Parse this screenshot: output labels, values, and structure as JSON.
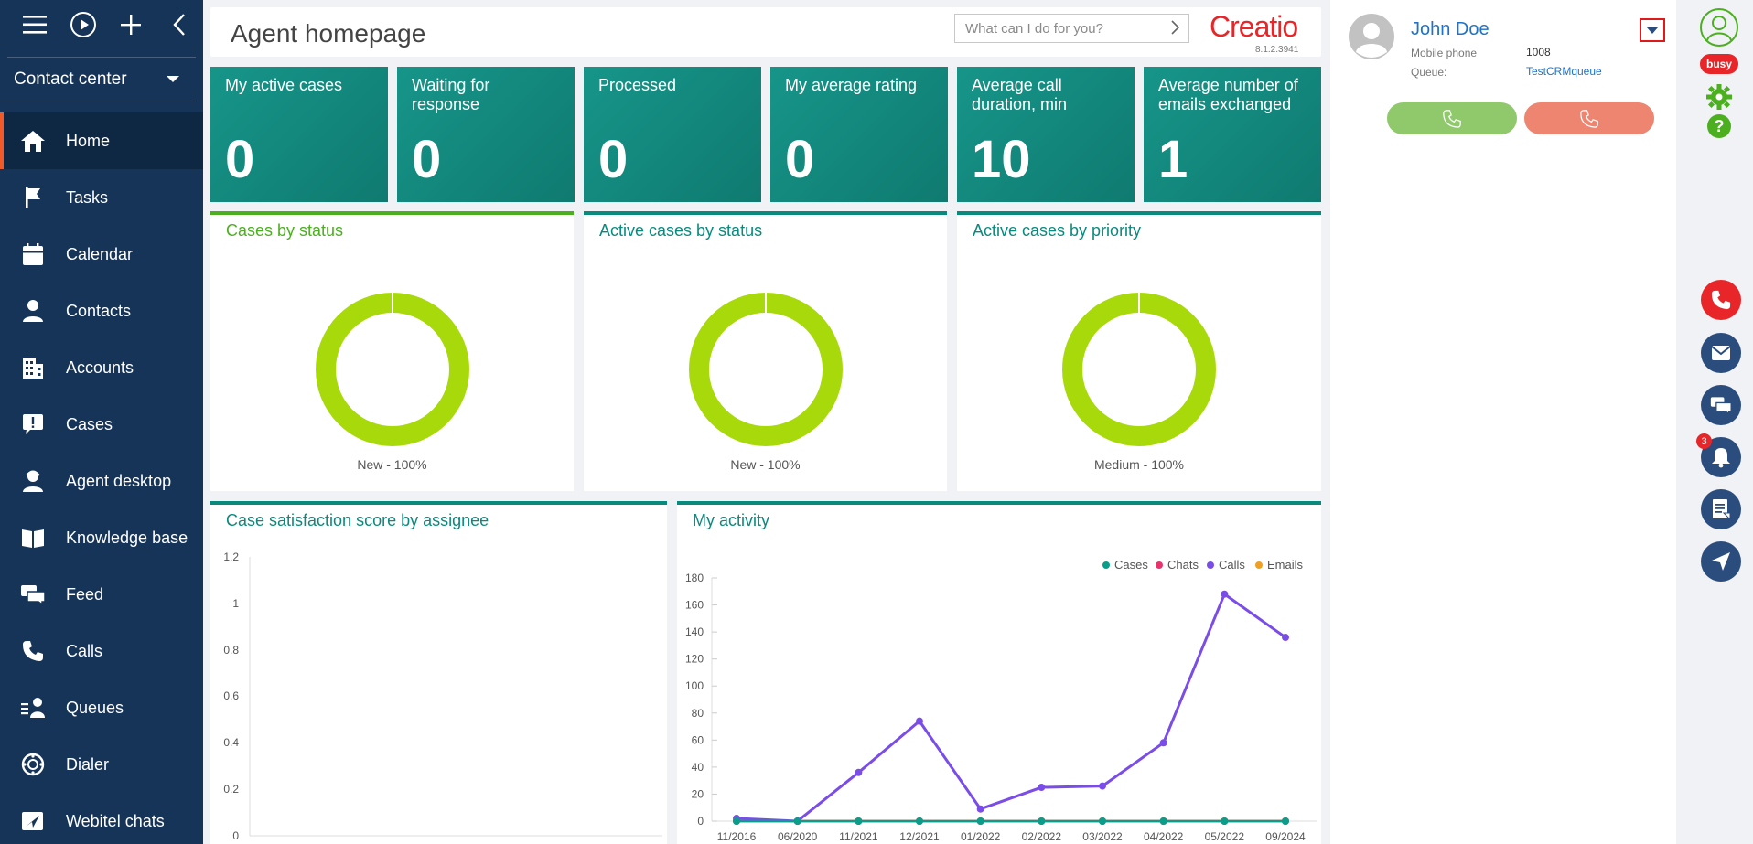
{
  "sidebar": {
    "workspace": "Contact center",
    "items": [
      {
        "label": "Home",
        "icon": "home-icon"
      },
      {
        "label": "Tasks",
        "icon": "flag-icon"
      },
      {
        "label": "Calendar",
        "icon": "calendar-icon"
      },
      {
        "label": "Contacts",
        "icon": "person-icon"
      },
      {
        "label": "Accounts",
        "icon": "building-icon"
      },
      {
        "label": "Cases",
        "icon": "exclamation-bubble-icon"
      },
      {
        "label": "Agent desktop",
        "icon": "agent-icon"
      },
      {
        "label": "Knowledge base",
        "icon": "book-icon"
      },
      {
        "label": "Feed",
        "icon": "chat-bubbles-icon"
      },
      {
        "label": "Calls",
        "icon": "phone-icon"
      },
      {
        "label": "Queues",
        "icon": "queue-icon"
      },
      {
        "label": "Dialer",
        "icon": "dialer-icon"
      },
      {
        "label": "Webitel chats",
        "icon": "send-icon"
      }
    ]
  },
  "header": {
    "title": "Agent homepage",
    "search_placeholder": "What can I do for you?",
    "logo": "Creatio",
    "version": "8.1.2.3941"
  },
  "kpis": [
    {
      "label": "My active cases",
      "value": "0"
    },
    {
      "label": "Waiting for response",
      "value": "0"
    },
    {
      "label": "Processed",
      "value": "0"
    },
    {
      "label": "My average rating",
      "value": "0"
    },
    {
      "label": "Average call duration, min",
      "value": "10"
    },
    {
      "label": "Average number of emails exchanged",
      "value": "1"
    }
  ],
  "donuts": [
    {
      "title": "Cases by status",
      "label": "New - 100%"
    },
    {
      "title": "Active cases by status",
      "label": "New - 100%"
    },
    {
      "title": "Active cases by priority",
      "label": "Medium - 100%"
    }
  ],
  "colors": {
    "sidebar": "#153457",
    "accent": "#0a8a7d",
    "donut": "#a8d90a",
    "calls": "#7b4de8",
    "cases": "#0a9e8a",
    "chats": "#e8336d",
    "emails": "#f0a020",
    "brand": "#e8262a"
  },
  "satisfaction": {
    "title": "Case satisfaction score by assignee",
    "yticks": [
      "1.2",
      "1",
      "0.8",
      "0.6",
      "0.4",
      "0.2",
      "0"
    ]
  },
  "activity": {
    "title": "My activity",
    "legend": [
      "Cases",
      "Chats",
      "Calls",
      "Emails"
    ],
    "yticks": [
      "180",
      "160",
      "140",
      "120",
      "100",
      "80",
      "60",
      "40",
      "20",
      "0"
    ]
  },
  "chart_data": {
    "type": "line",
    "title": "My activity",
    "categories": [
      "11/2016",
      "06/2020",
      "11/2021",
      "12/2021",
      "01/2022",
      "02/2022",
      "03/2022",
      "04/2022",
      "05/2022",
      "09/2024"
    ],
    "ylim": [
      0,
      180
    ],
    "legend": "top-right",
    "series": [
      {
        "name": "Cases",
        "values": [
          0,
          0,
          0,
          0,
          0,
          0,
          0,
          0,
          0,
          0
        ]
      },
      {
        "name": "Chats",
        "values": [
          0,
          0,
          0,
          0,
          0,
          0,
          0,
          0,
          0,
          0
        ]
      },
      {
        "name": "Calls",
        "values": [
          2,
          0,
          36,
          74,
          9,
          25,
          26,
          58,
          168,
          136
        ]
      },
      {
        "name": "Emails",
        "values": [
          0,
          0,
          0,
          0,
          0,
          0,
          0,
          0,
          0,
          0
        ]
      }
    ]
  },
  "agent": {
    "name": "John Doe",
    "phone_label": "Mobile phone",
    "phone_value": "1008",
    "queue_label": "Queue:",
    "queue_value": "TestCRMqueue"
  },
  "rail": {
    "status": "busy",
    "notifications": "3"
  }
}
